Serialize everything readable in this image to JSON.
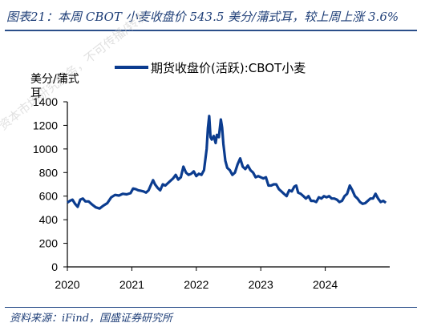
{
  "figure": {
    "title": "图表21：本周 CBOT 小麦收盘价 543.5 美分/蒲式耳，较上周上涨 3.6%",
    "source": "资料来源：iFind，国盛证券研究所",
    "watermark": "资本市场研究服务，不可传播/转发",
    "colors": {
      "accent": "#1f3f78",
      "series": "#0b3c8f"
    }
  },
  "chart_data": {
    "type": "line",
    "title": "",
    "xlabel": "",
    "ylabel": "美分/蒲式耳",
    "ylim": [
      0,
      1400
    ],
    "xlim": [
      2020.0,
      2025.0
    ],
    "yticks": [
      0,
      200,
      400,
      600,
      800,
      1000,
      1200,
      1400
    ],
    "xticks": [
      2020,
      2021,
      2022,
      2023,
      2024
    ],
    "legend_position": "top",
    "grid": false,
    "series": [
      {
        "name": "期货收盘价(活跃):CBOT小麦",
        "x": [
          2020.0,
          2020.04,
          2020.08,
          2020.12,
          2020.16,
          2020.2,
          2020.24,
          2020.28,
          2020.33,
          2020.38,
          2020.44,
          2020.5,
          2020.56,
          2020.62,
          2020.68,
          2020.74,
          2020.8,
          2020.86,
          2020.92,
          2020.98,
          2021.02,
          2021.06,
          2021.1,
          2021.14,
          2021.18,
          2021.22,
          2021.26,
          2021.3,
          2021.33,
          2021.36,
          2021.4,
          2021.44,
          2021.48,
          2021.52,
          2021.56,
          2021.6,
          2021.64,
          2021.68,
          2021.72,
          2021.76,
          2021.8,
          2021.84,
          2021.88,
          2021.92,
          2021.96,
          2022.0,
          2022.04,
          2022.08,
          2022.12,
          2022.16,
          2022.18,
          2022.2,
          2022.22,
          2022.24,
          2022.27,
          2022.3,
          2022.32,
          2022.35,
          2022.38,
          2022.4,
          2022.42,
          2022.45,
          2022.48,
          2022.52,
          2022.56,
          2022.6,
          2022.64,
          2022.68,
          2022.72,
          2022.76,
          2022.8,
          2022.84,
          2022.88,
          2022.92,
          2022.96,
          2023.0,
          2023.04,
          2023.08,
          2023.12,
          2023.16,
          2023.2,
          2023.24,
          2023.28,
          2023.32,
          2023.36,
          2023.4,
          2023.44,
          2023.48,
          2023.52,
          2023.55,
          2023.58,
          2023.62,
          2023.66,
          2023.7,
          2023.74,
          2023.78,
          2023.82,
          2023.86,
          2023.9,
          2023.94,
          2023.98,
          2024.02,
          2024.06,
          2024.1,
          2024.14,
          2024.18,
          2024.22,
          2024.26,
          2024.3,
          2024.34,
          2024.38,
          2024.42,
          2024.46,
          2024.5,
          2024.54,
          2024.58,
          2024.62,
          2024.66,
          2024.7,
          2024.74,
          2024.78,
          2024.82,
          2024.86,
          2024.9,
          2024.94
        ],
        "y": [
          545,
          560,
          570,
          535,
          510,
          570,
          580,
          555,
          555,
          530,
          505,
          495,
          520,
          540,
          590,
          610,
          605,
          620,
          615,
          625,
          665,
          660,
          650,
          645,
          640,
          630,
          650,
          700,
          735,
          700,
          670,
          650,
          700,
          690,
          710,
          730,
          750,
          780,
          740,
          760,
          850,
          800,
          780,
          790,
          810,
          770,
          790,
          780,
          820,
          1000,
          1180,
          1280,
          1100,
          1080,
          1110,
          1050,
          1120,
          1100,
          1250,
          1180,
          1040,
          900,
          840,
          820,
          780,
          800,
          870,
          920,
          850,
          830,
          860,
          820,
          800,
          760,
          770,
          760,
          750,
          760,
          690,
          690,
          700,
          700,
          660,
          640,
          620,
          600,
          650,
          640,
          680,
          690,
          630,
          620,
          600,
          580,
          600,
          560,
          560,
          550,
          590,
          580,
          600,
          590,
          600,
          580,
          580,
          570,
          550,
          560,
          600,
          620,
          690,
          650,
          600,
          580,
          550,
          535,
          540,
          560,
          580,
          580,
          620,
          580,
          550,
          560,
          544
        ]
      }
    ]
  }
}
